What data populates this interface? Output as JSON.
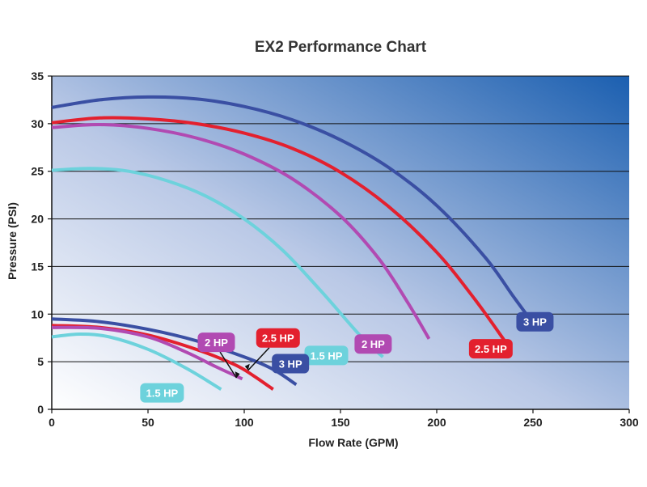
{
  "chart_data": {
    "type": "line",
    "title": "EX2 Performance Chart",
    "xlabel": "Flow Rate (GPM)",
    "ylabel": "Pressure (PSI)",
    "xlim": [
      0,
      300
    ],
    "ylim": [
      0,
      35
    ],
    "xticks": [
      "0",
      "50",
      "100",
      "150",
      "200",
      "250",
      "300"
    ],
    "yticks": [
      "0",
      "5",
      "10",
      "15",
      "20",
      "25",
      "30",
      "35"
    ],
    "grid": "horizontal",
    "background": "gradient white (bottom-left) to blue (top-right)",
    "series": [
      {
        "name": "3 HP",
        "color": "#3a4fa3",
        "label_anchor": [
          238,
          9.2
        ],
        "label_pos": "right",
        "points": [
          [
            0,
            31.7
          ],
          [
            25,
            32.5
          ],
          [
            50,
            32.8
          ],
          [
            75,
            32.6
          ],
          [
            100,
            31.8
          ],
          [
            125,
            30.4
          ],
          [
            150,
            28.3
          ],
          [
            175,
            25.4
          ],
          [
            200,
            21.4
          ],
          [
            225,
            16.0
          ],
          [
            240,
            11.8
          ],
          [
            252,
            8.5
          ]
        ]
      },
      {
        "name": "2.5 HP",
        "color": "#e3202e",
        "label_anchor": [
          226,
          8.4
        ],
        "label_pos": "below",
        "points": [
          [
            0,
            30.1
          ],
          [
            25,
            30.6
          ],
          [
            50,
            30.5
          ],
          [
            75,
            30.0
          ],
          [
            100,
            29.0
          ],
          [
            125,
            27.4
          ],
          [
            150,
            24.9
          ],
          [
            175,
            21.3
          ],
          [
            200,
            16.5
          ],
          [
            220,
            11.5
          ],
          [
            237,
            6.7
          ]
        ]
      },
      {
        "name": "2 HP",
        "color": "#b14ab2",
        "label_anchor": [
          180,
          7.2
        ],
        "label_pos": "left",
        "points": [
          [
            0,
            29.6
          ],
          [
            25,
            29.9
          ],
          [
            50,
            29.5
          ],
          [
            75,
            28.5
          ],
          [
            100,
            26.8
          ],
          [
            125,
            24.2
          ],
          [
            150,
            20.3
          ],
          [
            170,
            15.8
          ],
          [
            185,
            11.2
          ],
          [
            196,
            7.4
          ]
        ]
      },
      {
        "name": "1.5 HP",
        "color": "#6dd2dc",
        "label_anchor": [
          154,
          6.0
        ],
        "label_pos": "left",
        "points": [
          [
            0,
            25.1
          ],
          [
            20,
            25.3
          ],
          [
            40,
            25.0
          ],
          [
            60,
            24.0
          ],
          [
            80,
            22.4
          ],
          [
            100,
            20.0
          ],
          [
            120,
            16.7
          ],
          [
            140,
            12.4
          ],
          [
            160,
            7.8
          ],
          [
            172,
            5.5
          ]
        ]
      },
      {
        "name": "3 HP",
        "color": "#3a4fa3",
        "label_anchor": [
          111,
          4.8
        ],
        "label_pos": "right",
        "points": [
          [
            0,
            9.5
          ],
          [
            25,
            9.2
          ],
          [
            50,
            8.4
          ],
          [
            75,
            7.2
          ],
          [
            100,
            5.5
          ],
          [
            115,
            4.2
          ],
          [
            127,
            2.6
          ]
        ]
      },
      {
        "name": "2.5 HP",
        "color": "#e3202e",
        "label_anchor": [
          102,
          4.1
        ],
        "label_pos": "above-right",
        "points": [
          [
            0,
            8.8
          ],
          [
            25,
            8.6
          ],
          [
            50,
            7.8
          ],
          [
            75,
            6.3
          ],
          [
            95,
            4.7
          ],
          [
            105,
            3.5
          ],
          [
            115,
            2.1
          ]
        ]
      },
      {
        "name": "2 HP",
        "color": "#b14ab2",
        "label_anchor": [
          96,
          3.3
        ],
        "label_pos": "above-left",
        "points": [
          [
            0,
            8.6
          ],
          [
            25,
            8.5
          ],
          [
            50,
            7.6
          ],
          [
            70,
            6.0
          ],
          [
            85,
            4.5
          ],
          [
            99,
            3.2
          ]
        ]
      },
      {
        "name": "1.5 HP",
        "color": "#6dd2dc",
        "label_anchor": [
          72,
          3.6
        ],
        "label_pos": "below-left",
        "points": [
          [
            0,
            7.6
          ],
          [
            15,
            7.9
          ],
          [
            30,
            7.6
          ],
          [
            50,
            6.3
          ],
          [
            70,
            4.3
          ],
          [
            88,
            2.1
          ]
        ]
      }
    ]
  }
}
